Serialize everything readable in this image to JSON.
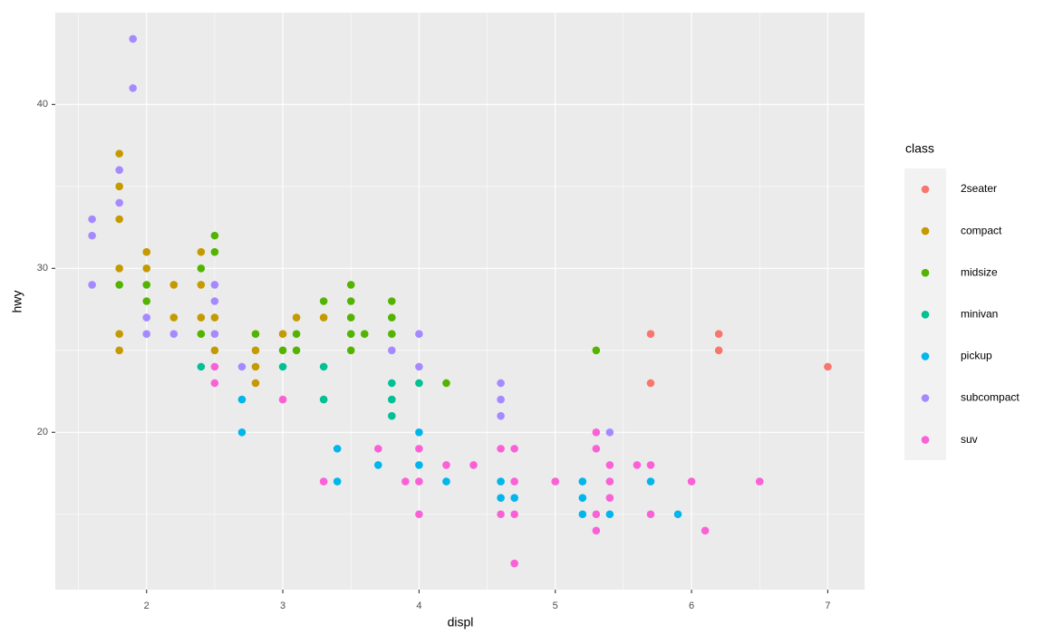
{
  "chart_data": {
    "type": "scatter",
    "x_label": "displ",
    "y_label": "hwy",
    "legend_title": "class",
    "xlim": [
      1.33,
      7.27
    ],
    "ylim": [
      10.4,
      45.6
    ],
    "xticks": [
      2,
      3,
      4,
      5,
      6,
      7
    ],
    "yticks": [
      20,
      30,
      40
    ],
    "x_minor_grid": [
      1.5,
      2.5,
      3.5,
      4.5,
      5.5,
      6.5
    ],
    "y_minor_grid": [
      15,
      25,
      35
    ],
    "grid": true,
    "legend_position": "right",
    "series": [
      {
        "name": "2seater",
        "color": "#F8766D",
        "x": [
          5.7,
          5.7,
          6.2,
          6.2,
          7.0
        ],
        "values": [
          26,
          23,
          26,
          25,
          24
        ]
      },
      {
        "name": "compact",
        "color": "#C49A00",
        "x": [
          1.8,
          1.8,
          1.8,
          1.8,
          1.8,
          1.8,
          2.0,
          2.0,
          2.2,
          2.2,
          2.4,
          2.4,
          2.4,
          2.5,
          2.5,
          2.8,
          2.8,
          2.8,
          3.0,
          3.1,
          3.3
        ],
        "values": [
          37,
          35,
          33,
          30,
          26,
          25,
          31,
          30,
          29,
          27,
          31,
          29,
          27,
          27,
          25,
          25,
          24,
          23,
          26,
          27,
          27
        ]
      },
      {
        "name": "midsize",
        "color": "#53B400",
        "x": [
          1.8,
          2.0,
          2.0,
          2.4,
          2.4,
          2.5,
          2.5,
          2.8,
          3.0,
          3.1,
          3.1,
          3.3,
          3.5,
          3.5,
          3.5,
          3.5,
          3.5,
          3.6,
          3.8,
          3.8,
          3.8,
          4.2,
          5.3
        ],
        "values": [
          29,
          29,
          28,
          30,
          26,
          32,
          31,
          26,
          25,
          26,
          25,
          28,
          29,
          28,
          27,
          26,
          25,
          26,
          28,
          27,
          26,
          23,
          25
        ]
      },
      {
        "name": "minivan",
        "color": "#00C094",
        "x": [
          2.4,
          3.0,
          3.3,
          3.3,
          3.8,
          3.8,
          3.8,
          4.0
        ],
        "values": [
          24,
          24,
          24,
          22,
          23,
          22,
          21,
          23
        ]
      },
      {
        "name": "pickup",
        "color": "#00B6EB",
        "x": [
          2.7,
          2.7,
          3.4,
          3.4,
          3.7,
          4.0,
          4.0,
          4.2,
          4.6,
          4.6,
          4.7,
          5.2,
          5.2,
          5.2,
          5.4,
          5.7,
          5.9
        ],
        "values": [
          22,
          20,
          19,
          17,
          18,
          20,
          18,
          17,
          17,
          16,
          16,
          17,
          16,
          15,
          15,
          17,
          15
        ]
      },
      {
        "name": "subcompact",
        "color": "#A58AFF",
        "x": [
          1.6,
          1.6,
          1.6,
          1.8,
          1.8,
          1.9,
          1.9,
          2.0,
          2.0,
          2.2,
          2.5,
          2.5,
          2.5,
          2.7,
          3.8,
          4.0,
          4.0,
          4.6,
          4.6,
          4.6,
          5.4
        ],
        "values": [
          33,
          32,
          29,
          36,
          34,
          44,
          41,
          27,
          26,
          26,
          29,
          28,
          26,
          24,
          25,
          26,
          24,
          23,
          22,
          21,
          20
        ]
      },
      {
        "name": "suv",
        "color": "#FB61D7",
        "x": [
          2.5,
          2.5,
          3.0,
          3.3,
          3.7,
          3.9,
          4.0,
          4.0,
          4.0,
          4.2,
          4.4,
          4.6,
          4.6,
          4.7,
          4.7,
          4.7,
          4.7,
          5.0,
          5.3,
          5.3,
          5.3,
          5.3,
          5.4,
          5.4,
          5.4,
          5.6,
          5.7,
          5.7,
          6.0,
          6.1,
          6.5
        ],
        "values": [
          24,
          23,
          22,
          17,
          19,
          17,
          19,
          17,
          15,
          18,
          18,
          19,
          15,
          19,
          17,
          15,
          12,
          17,
          20,
          19,
          15,
          14,
          18,
          17,
          16,
          18,
          18,
          15,
          17,
          14,
          17
        ]
      }
    ]
  }
}
